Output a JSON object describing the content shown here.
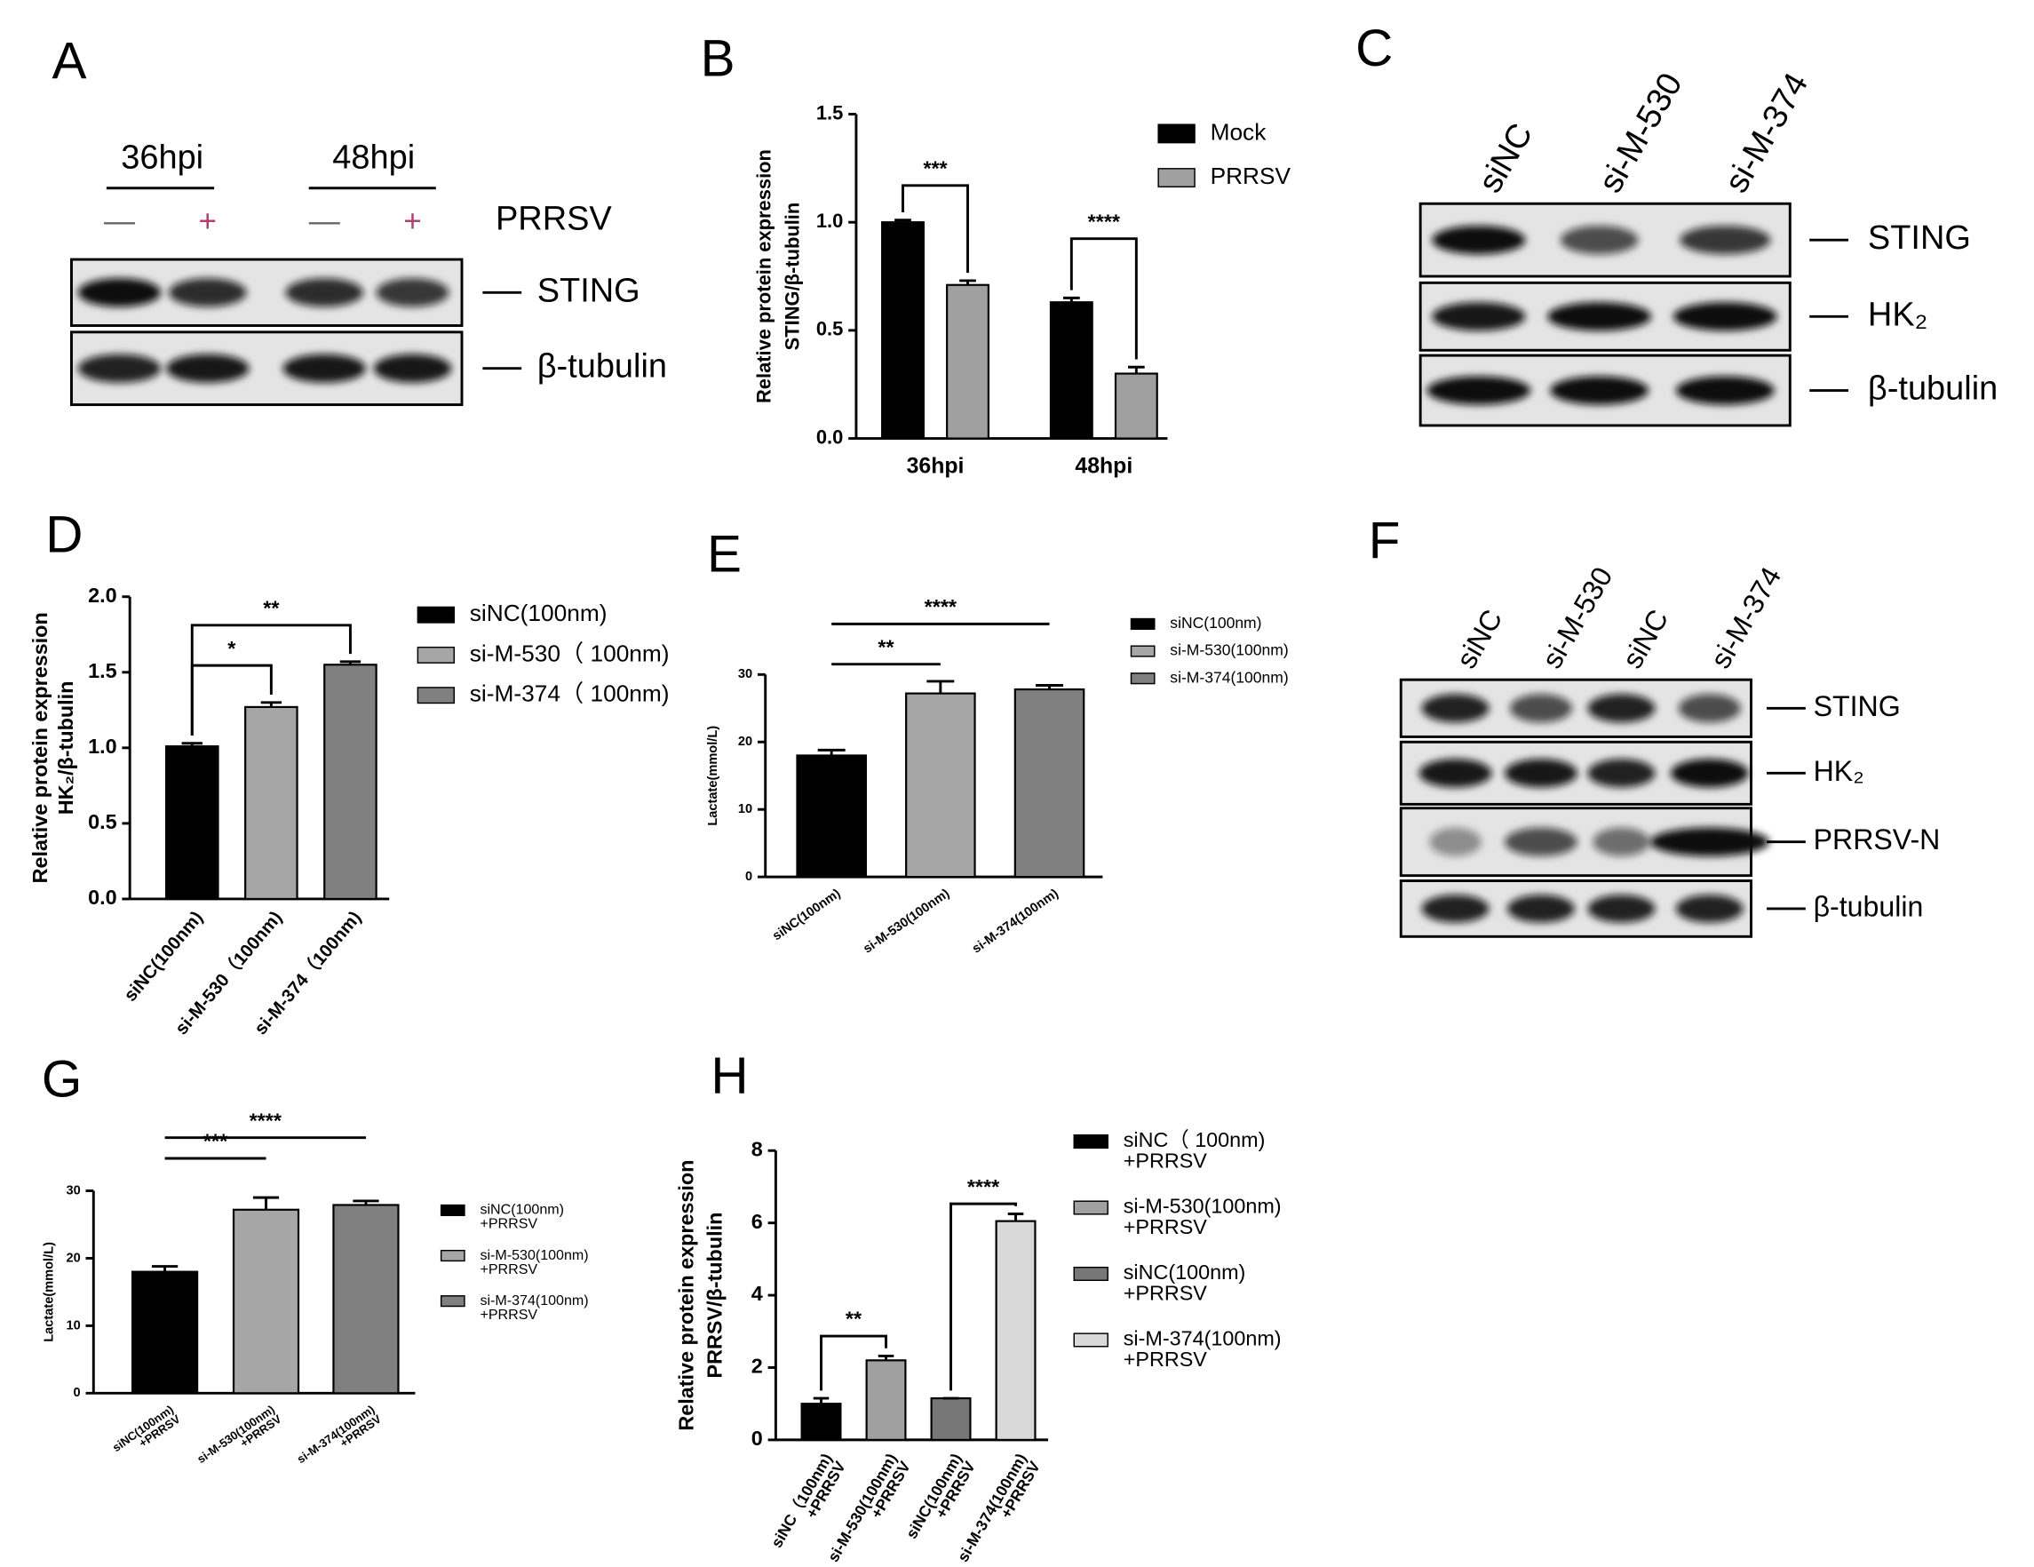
{
  "blots": [
    {
      "label": "A",
      "groups": [
        "36hpi",
        "48hpi"
      ],
      "lane_signs": [
        "—",
        "+",
        "—",
        "+"
      ],
      "treatment": "PRRSV",
      "bands": [
        "STING",
        "β-tubulin"
      ]
    },
    {
      "label": "C",
      "lanes": [
        "siNC",
        "si-M-530",
        "si-M-374"
      ],
      "bands": [
        "STING",
        "HK₂",
        "β-tubulin"
      ]
    },
    {
      "label": "F",
      "lanes": [
        "siNC",
        "si-M-530",
        "siNC",
        "si-M-374"
      ],
      "bands": [
        "STING",
        "HK₂",
        "PRRSV-N",
        "β-tubulin"
      ]
    }
  ],
  "chart_data": [
    {
      "label": "B",
      "type": "bar",
      "ylabel": [
        "Relative protein expression",
        "STING/β-tubulin"
      ],
      "categories": [
        "36hpi",
        "48hpi"
      ],
      "series": [
        {
          "name": "Mock",
          "color": "#000000",
          "values": [
            1.0,
            0.63
          ],
          "errors": [
            0.01,
            0.02
          ]
        },
        {
          "name": "PRRSV",
          "color": "#a0a0a0",
          "values": [
            0.71,
            0.3
          ],
          "errors": [
            0.02,
            0.03
          ]
        }
      ],
      "ylim": [
        0,
        1.5
      ],
      "yticks": [
        {
          "value": 0,
          "label": "0.0"
        },
        0.5,
        {
          "value": 1,
          "label": "1.0"
        },
        1.5
      ],
      "annotations": [
        "***",
        "****"
      ]
    },
    {
      "label": "D",
      "type": "bar",
      "ylabel": [
        "Relative protein expression",
        "HK₂/β-tubulin"
      ],
      "categories": [
        "siNC(100nm)",
        "si-M-530（100nm)",
        "si-M-374（100nm)"
      ],
      "values": [
        1.01,
        1.27,
        1.55
      ],
      "errors": [
        0.02,
        0.03,
        0.02
      ],
      "colors": [
        "#000000",
        "#a6a6a6",
        "#808080"
      ],
      "legend": [
        "siNC(100nm)",
        "si-M-530（ 100nm)",
        "si-M-374（ 100nm)"
      ],
      "ylim": [
        0,
        2
      ],
      "yticks": [
        {
          "value": 0,
          "label": "0.0"
        },
        0.5,
        {
          "value": 1,
          "label": "1.0"
        },
        1.5,
        {
          "value": 2,
          "label": "2.0"
        }
      ],
      "annotations": [
        "*",
        "**"
      ]
    },
    {
      "label": "E",
      "type": "bar",
      "ylabel": [
        "Lactate(mmol/L)"
      ],
      "categories": [
        "siNC(100nm)",
        "si-M-530(100nm)",
        "si-M-374(100nm)"
      ],
      "values": [
        18,
        27.2,
        27.8
      ],
      "errors": [
        0.8,
        1.8,
        0.6
      ],
      "colors": [
        "#000000",
        "#a6a6a6",
        "#808080"
      ],
      "legend": [
        "siNC(100nm)",
        "si-M-530(100nm)",
        "si-M-374(100nm)"
      ],
      "ylim": [
        0,
        30
      ],
      "yticks": [
        0,
        10,
        20,
        30
      ],
      "annotations": [
        "**",
        "****"
      ]
    },
    {
      "label": "G",
      "type": "bar",
      "ylabel": [
        "Lactate(mmol/L)"
      ],
      "categories": [
        [
          "siNC(100nm)",
          "+PRRSV"
        ],
        [
          "si-M-530(100nm)",
          "+PRRSV"
        ],
        [
          "si-M-374(100nm)",
          "+PRRSV"
        ]
      ],
      "values": [
        18,
        27.2,
        27.9
      ],
      "errors": [
        0.8,
        1.8,
        0.6
      ],
      "colors": [
        "#000000",
        "#a6a6a6",
        "#808080"
      ],
      "legend": [
        [
          "siNC(100nm)",
          "+PRRSV"
        ],
        [
          "si-M-530(100nm)",
          "+PRRSV"
        ],
        [
          "si-M-374(100nm)",
          "+PRRSV"
        ]
      ],
      "ylim": [
        0,
        30
      ],
      "yticks": [
        0,
        10,
        20,
        30
      ],
      "annotations": [
        "***",
        "****"
      ]
    },
    {
      "label": "H",
      "type": "bar",
      "ylabel": [
        "Relative protein expression",
        "PRRSV/β-tubulin"
      ],
      "categories": [
        [
          "siNC（100nm)",
          "+PRRSV"
        ],
        [
          "si-M-530(100nm)",
          "+PRRSV"
        ],
        [
          "siNC(100nm)",
          "+PRRSV"
        ],
        [
          "si-M-374(100nm)",
          "+PRRSV"
        ]
      ],
      "values": [
        1.0,
        2.2,
        1.15,
        6.05
      ],
      "errors": [
        0.15,
        0.12,
        0,
        0.2
      ],
      "colors": [
        "#000000",
        "#a0a0a0",
        "#777777",
        "#d9d9d9"
      ],
      "legend": [
        [
          "siNC（ 100nm)",
          "+PRRSV"
        ],
        [
          "si-M-530(100nm)",
          "+PRRSV"
        ],
        [
          "siNC(100nm)",
          "+PRRSV"
        ],
        [
          "si-M-374(100nm)",
          "+PRRSV"
        ]
      ],
      "ylim": [
        0,
        8
      ],
      "yticks": [
        0,
        2,
        4,
        6,
        8
      ],
      "annotations": [
        "**",
        "****"
      ]
    }
  ]
}
